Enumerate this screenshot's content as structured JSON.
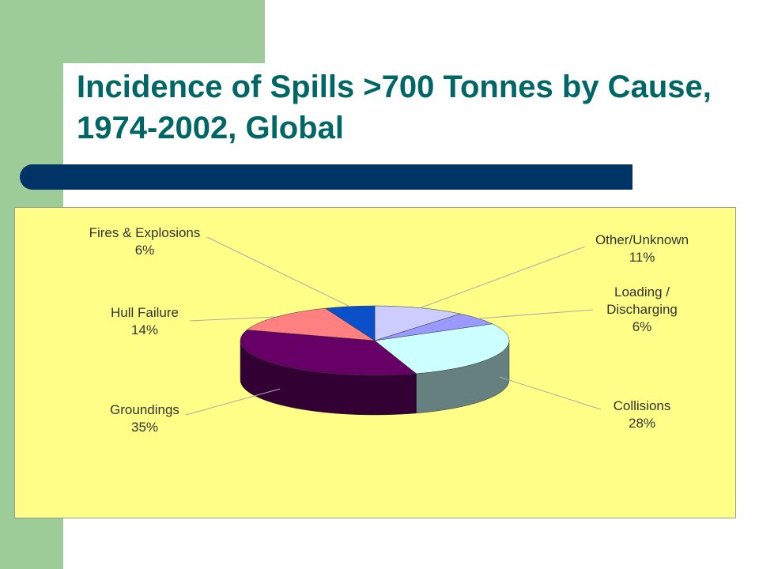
{
  "chart_data": {
    "type": "pie",
    "title": "Incidence of Spills >700 Tonnes by Cause, 1974-2002, Global",
    "categories": [
      "Other/Unknown",
      "Loading / Discharging",
      "Collisions",
      "Groundings",
      "Hull Failure",
      "Fires & Explosions"
    ],
    "values": [
      11,
      6,
      28,
      35,
      14,
      6
    ],
    "value_labels": [
      "11%",
      "6%",
      "28%",
      "35%",
      "14%",
      "6%"
    ],
    "colors": [
      "#ccccff",
      "#9999ff",
      "#ccffff",
      "#660066",
      "#ff8080",
      "#0a50c8"
    ]
  }
}
